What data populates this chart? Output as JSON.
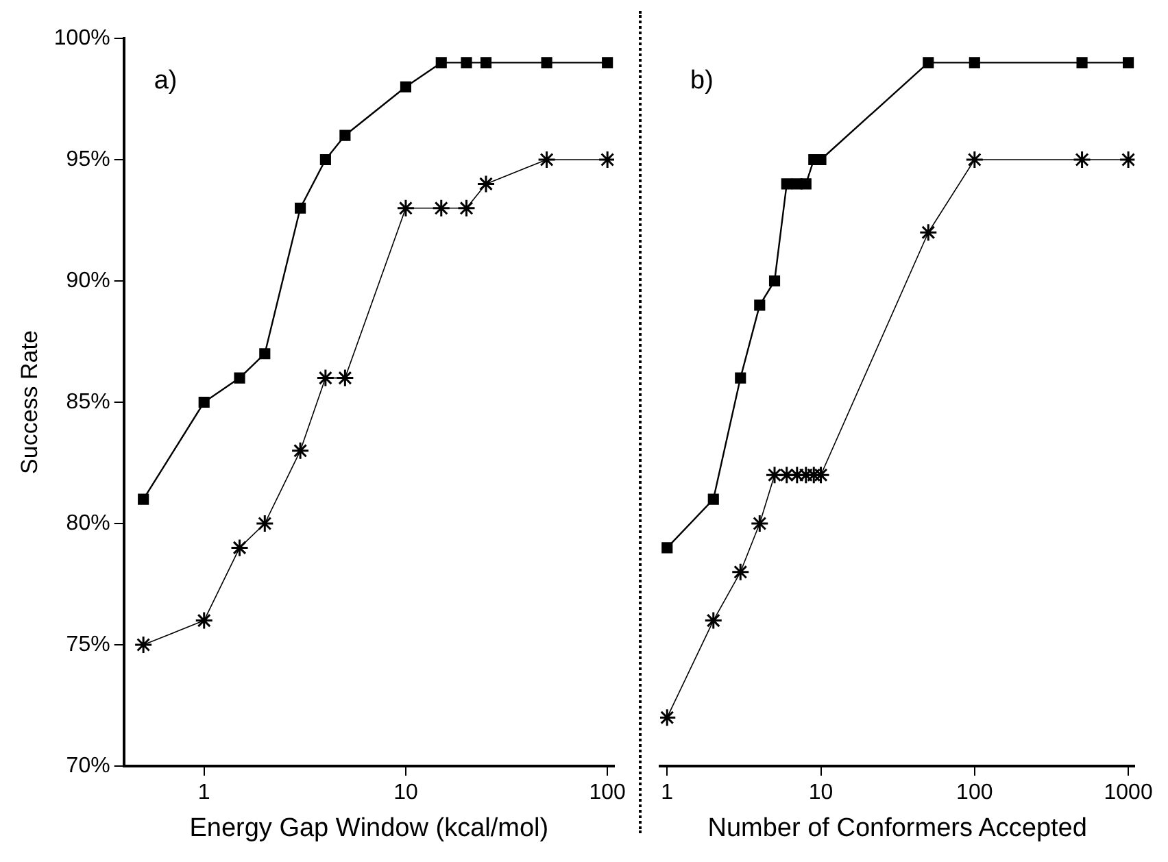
{
  "chart_data": [
    {
      "type": "line",
      "xlabel": "Energy Gap Window (kcal/mol)",
      "ylabel": "Success Rate",
      "annotations": [
        "a)"
      ],
      "log": "x",
      "xlim": [
        0.4,
        108
      ],
      "xticks": [
        1,
        10,
        100
      ],
      "ylim": [
        70,
        100
      ],
      "yticks": [
        {
          "value": 70,
          "label": "70%"
        },
        {
          "value": 75,
          "label": "75%"
        },
        {
          "value": 80,
          "label": "80%"
        },
        {
          "value": 85,
          "label": "85%"
        },
        {
          "value": 90,
          "label": "90%"
        },
        {
          "value": 95,
          "label": "95%"
        },
        {
          "value": 100,
          "label": "100%"
        }
      ],
      "grid": false,
      "legend": false,
      "line_style": "solid",
      "series": [
        {
          "color": "#000000",
          "marker": "square",
          "x": [
            0.5,
            1,
            1.5,
            2,
            3,
            4,
            5,
            10,
            15,
            20,
            25,
            50,
            100
          ],
          "values": [
            81,
            85,
            86,
            87,
            93,
            95,
            96,
            98,
            99,
            99,
            99,
            99,
            99
          ]
        },
        {
          "color": "#000000",
          "marker": "cross",
          "x": [
            0.5,
            1,
            1.5,
            2,
            3,
            4,
            5,
            10,
            15,
            20,
            25,
            50,
            100
          ],
          "values": [
            75,
            76,
            79,
            80,
            83,
            86,
            86,
            93,
            93,
            93,
            94,
            95,
            95
          ]
        }
      ]
    },
    {
      "type": "line",
      "xlabel": "Number of Conformers Accepted",
      "annotations": [
        "b)"
      ],
      "log": "x",
      "xlim": [
        0.9,
        1100
      ],
      "xticks": [
        1,
        10,
        100,
        1000
      ],
      "ylim": [
        70,
        100
      ],
      "tick_labels": "x",
      "grid": false,
      "legend": false,
      "line_style": "solid",
      "series": [
        {
          "color": "#000000",
          "marker": "square",
          "x": [
            1,
            2,
            3,
            4,
            5,
            6,
            7,
            8,
            9,
            10,
            50,
            100,
            500,
            1000
          ],
          "values": [
            79,
            81,
            86,
            89,
            90,
            94,
            94,
            94,
            95,
            95,
            99,
            99,
            99,
            99
          ]
        },
        {
          "color": "#000000",
          "marker": "cross",
          "x": [
            1,
            2,
            3,
            4,
            5,
            6,
            7,
            8,
            9,
            10,
            50,
            100,
            500,
            1000
          ],
          "values": [
            72,
            76,
            78,
            80,
            82,
            82,
            82,
            82,
            82,
            82,
            92,
            95,
            95,
            95
          ]
        }
      ]
    }
  ]
}
